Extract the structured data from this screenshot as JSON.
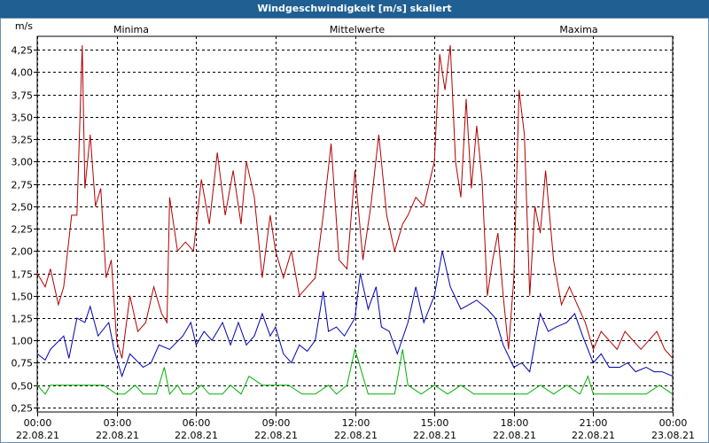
{
  "window": {
    "title": "Windgeschwindigkeit [m/s] skaliert"
  },
  "chart_data": {
    "type": "line",
    "title": "Windgeschwindigkeit [m/s] skaliert",
    "ylabel": "m/s",
    "ylim": [
      0.2,
      4.4
    ],
    "xlim": [
      0,
      24
    ],
    "yticks": [
      0.25,
      0.5,
      0.75,
      1.0,
      1.25,
      1.5,
      1.75,
      2.0,
      2.25,
      2.5,
      2.75,
      3.0,
      3.25,
      3.5,
      3.75,
      4.0,
      4.25
    ],
    "ytick_labels": [
      "0,25",
      "0,50",
      "0,75",
      "1,00",
      "1,25",
      "1,50",
      "1,75",
      "2,00",
      "2,25",
      "2,50",
      "2,75",
      "3,00",
      "3,25",
      "3,50",
      "3,75",
      "4,00",
      "4,25"
    ],
    "xticks": [
      {
        "time": "00:00",
        "date": "22.08.21"
      },
      {
        "time": "03:00",
        "date": "22.08.21"
      },
      {
        "time": "06:00",
        "date": "22.08.21"
      },
      {
        "time": "09:00",
        "date": "22.08.21"
      },
      {
        "time": "12:00",
        "date": "22.08.21"
      },
      {
        "time": "15:00",
        "date": "22.08.21"
      },
      {
        "time": "18:00",
        "date": "22.08.21"
      },
      {
        "time": "21:00",
        "date": "22.08.21"
      },
      {
        "time": "00:00",
        "date": "23.08.21"
      }
    ],
    "series": [
      {
        "name": "Minima",
        "color": "#00b000",
        "x": [
          0,
          0.3,
          0.5,
          1,
          1.5,
          2,
          2.5,
          3,
          3.3,
          3.7,
          4,
          4.5,
          4.8,
          5,
          5.3,
          5.5,
          5.8,
          6.2,
          6.5,
          7,
          7.3,
          7.7,
          8,
          8.5,
          9,
          9.5,
          10,
          10.2,
          10.5,
          11,
          11.3,
          11.7,
          12,
          12.5,
          13,
          13.5,
          13.8,
          14,
          14.5,
          15,
          15.5,
          16,
          16.5,
          17,
          17.5,
          18,
          18.5,
          19,
          19.5,
          20,
          20.5,
          20.8,
          21,
          21.5,
          22,
          22.5,
          23,
          23.5,
          24
        ],
        "values": [
          0.5,
          0.4,
          0.5,
          0.5,
          0.5,
          0.5,
          0.5,
          0.4,
          0.4,
          0.5,
          0.4,
          0.4,
          0.7,
          0.4,
          0.5,
          0.4,
          0.4,
          0.5,
          0.4,
          0.4,
          0.5,
          0.4,
          0.6,
          0.5,
          0.5,
          0.5,
          0.4,
          0.4,
          0.4,
          0.5,
          0.4,
          0.5,
          0.9,
          0.4,
          0.4,
          0.4,
          0.9,
          0.5,
          0.4,
          0.5,
          0.4,
          0.5,
          0.4,
          0.4,
          0.4,
          0.4,
          0.4,
          0.5,
          0.4,
          0.5,
          0.4,
          0.6,
          0.4,
          0.4,
          0.4,
          0.4,
          0.4,
          0.5,
          0.4
        ]
      },
      {
        "name": "Mittelwerte",
        "color": "#0000b0",
        "x": [
          0,
          0.3,
          0.5,
          1,
          1.2,
          1.5,
          1.8,
          2,
          2.3,
          2.7,
          2.9,
          3.2,
          3.5,
          4,
          4.3,
          4.6,
          5,
          5.5,
          5.8,
          6,
          6.3,
          6.6,
          7,
          7.3,
          7.6,
          7.9,
          8.2,
          8.5,
          8.8,
          9,
          9.3,
          9.6,
          9.9,
          10.2,
          10.5,
          10.8,
          11,
          11.3,
          11.6,
          12,
          12.2,
          12.5,
          12.8,
          13,
          13.3,
          13.6,
          14,
          14.3,
          14.6,
          15,
          15.3,
          15.6,
          16,
          16.3,
          16.6,
          17,
          17.3,
          17.6,
          18,
          18.3,
          18.6,
          19,
          19.3,
          19.6,
          20,
          20.3,
          20.6,
          21,
          21.3,
          21.6,
          22,
          22.3,
          22.6,
          23,
          23.3,
          23.6,
          24
        ],
        "values": [
          0.85,
          0.78,
          0.9,
          1.05,
          0.8,
          1.25,
          1.2,
          1.38,
          1.05,
          1.2,
          0.9,
          0.6,
          0.85,
          0.7,
          0.75,
          0.95,
          0.9,
          1.05,
          1.2,
          0.95,
          1.1,
          1.0,
          1.2,
          0.95,
          1.2,
          0.95,
          1.05,
          1.3,
          1.05,
          1.15,
          0.85,
          0.75,
          0.95,
          0.88,
          1.0,
          1.55,
          1.1,
          1.15,
          1.05,
          1.25,
          1.75,
          1.35,
          1.6,
          1.15,
          1.1,
          0.85,
          1.2,
          1.6,
          1.2,
          1.5,
          2.0,
          1.6,
          1.35,
          1.4,
          1.45,
          1.35,
          1.25,
          0.95,
          0.7,
          0.75,
          0.65,
          1.3,
          1.1,
          1.15,
          1.2,
          1.3,
          1.05,
          0.75,
          0.85,
          0.7,
          0.7,
          0.75,
          0.65,
          0.7,
          0.65,
          0.65,
          0.6
        ]
      },
      {
        "name": "Maxima",
        "color": "#b00000",
        "x": [
          0,
          0.3,
          0.5,
          0.8,
          1,
          1.3,
          1.5,
          1.7,
          1.8,
          2,
          2.2,
          2.4,
          2.6,
          2.8,
          3,
          3.2,
          3.5,
          3.8,
          4.1,
          4.4,
          4.7,
          4.9,
          5,
          5.3,
          5.6,
          5.9,
          6.2,
          6.5,
          6.8,
          7.1,
          7.4,
          7.7,
          7.9,
          8.2,
          8.5,
          8.8,
          9,
          9.3,
          9.6,
          9.9,
          10.2,
          10.5,
          10.8,
          11.1,
          11.4,
          11.7,
          12,
          12.3,
          12.6,
          12.9,
          13.2,
          13.5,
          13.8,
          14,
          14.3,
          14.6,
          15,
          15.2,
          15.4,
          15.6,
          15.8,
          16,
          16.2,
          16.4,
          16.6,
          16.8,
          17,
          17.2,
          17.4,
          17.6,
          17.8,
          18,
          18.2,
          18.4,
          18.6,
          18.8,
          19,
          19.2,
          19.5,
          19.8,
          20.1,
          20.4,
          20.7,
          21,
          21.3,
          21.6,
          21.9,
          22.2,
          22.5,
          22.8,
          23.1,
          23.4,
          23.7,
          24
        ],
        "values": [
          1.75,
          1.6,
          1.8,
          1.4,
          1.6,
          2.4,
          2.4,
          4.3,
          2.7,
          3.3,
          2.5,
          2.7,
          1.7,
          1.9,
          1.0,
          0.8,
          1.5,
          1.1,
          1.2,
          1.6,
          1.3,
          1.2,
          2.6,
          2.0,
          2.1,
          2.0,
          2.8,
          2.3,
          3.1,
          2.4,
          2.9,
          2.3,
          3.0,
          2.6,
          1.7,
          2.4,
          2.0,
          1.7,
          2.0,
          1.5,
          1.6,
          1.7,
          2.4,
          3.2,
          1.9,
          1.8,
          2.9,
          1.9,
          2.5,
          3.3,
          2.4,
          2.0,
          2.3,
          2.4,
          2.6,
          2.5,
          3.0,
          4.2,
          3.8,
          4.3,
          3.0,
          2.6,
          3.7,
          2.7,
          3.4,
          2.8,
          1.5,
          1.9,
          2.2,
          1.5,
          0.9,
          1.7,
          3.8,
          3.3,
          1.5,
          2.5,
          2.2,
          2.9,
          1.9,
          1.4,
          1.6,
          1.4,
          1.2,
          0.9,
          1.1,
          1.0,
          0.9,
          1.1,
          1.0,
          0.9,
          1.0,
          1.1,
          0.9,
          0.8
        ]
      }
    ],
    "legend": "top-center"
  }
}
